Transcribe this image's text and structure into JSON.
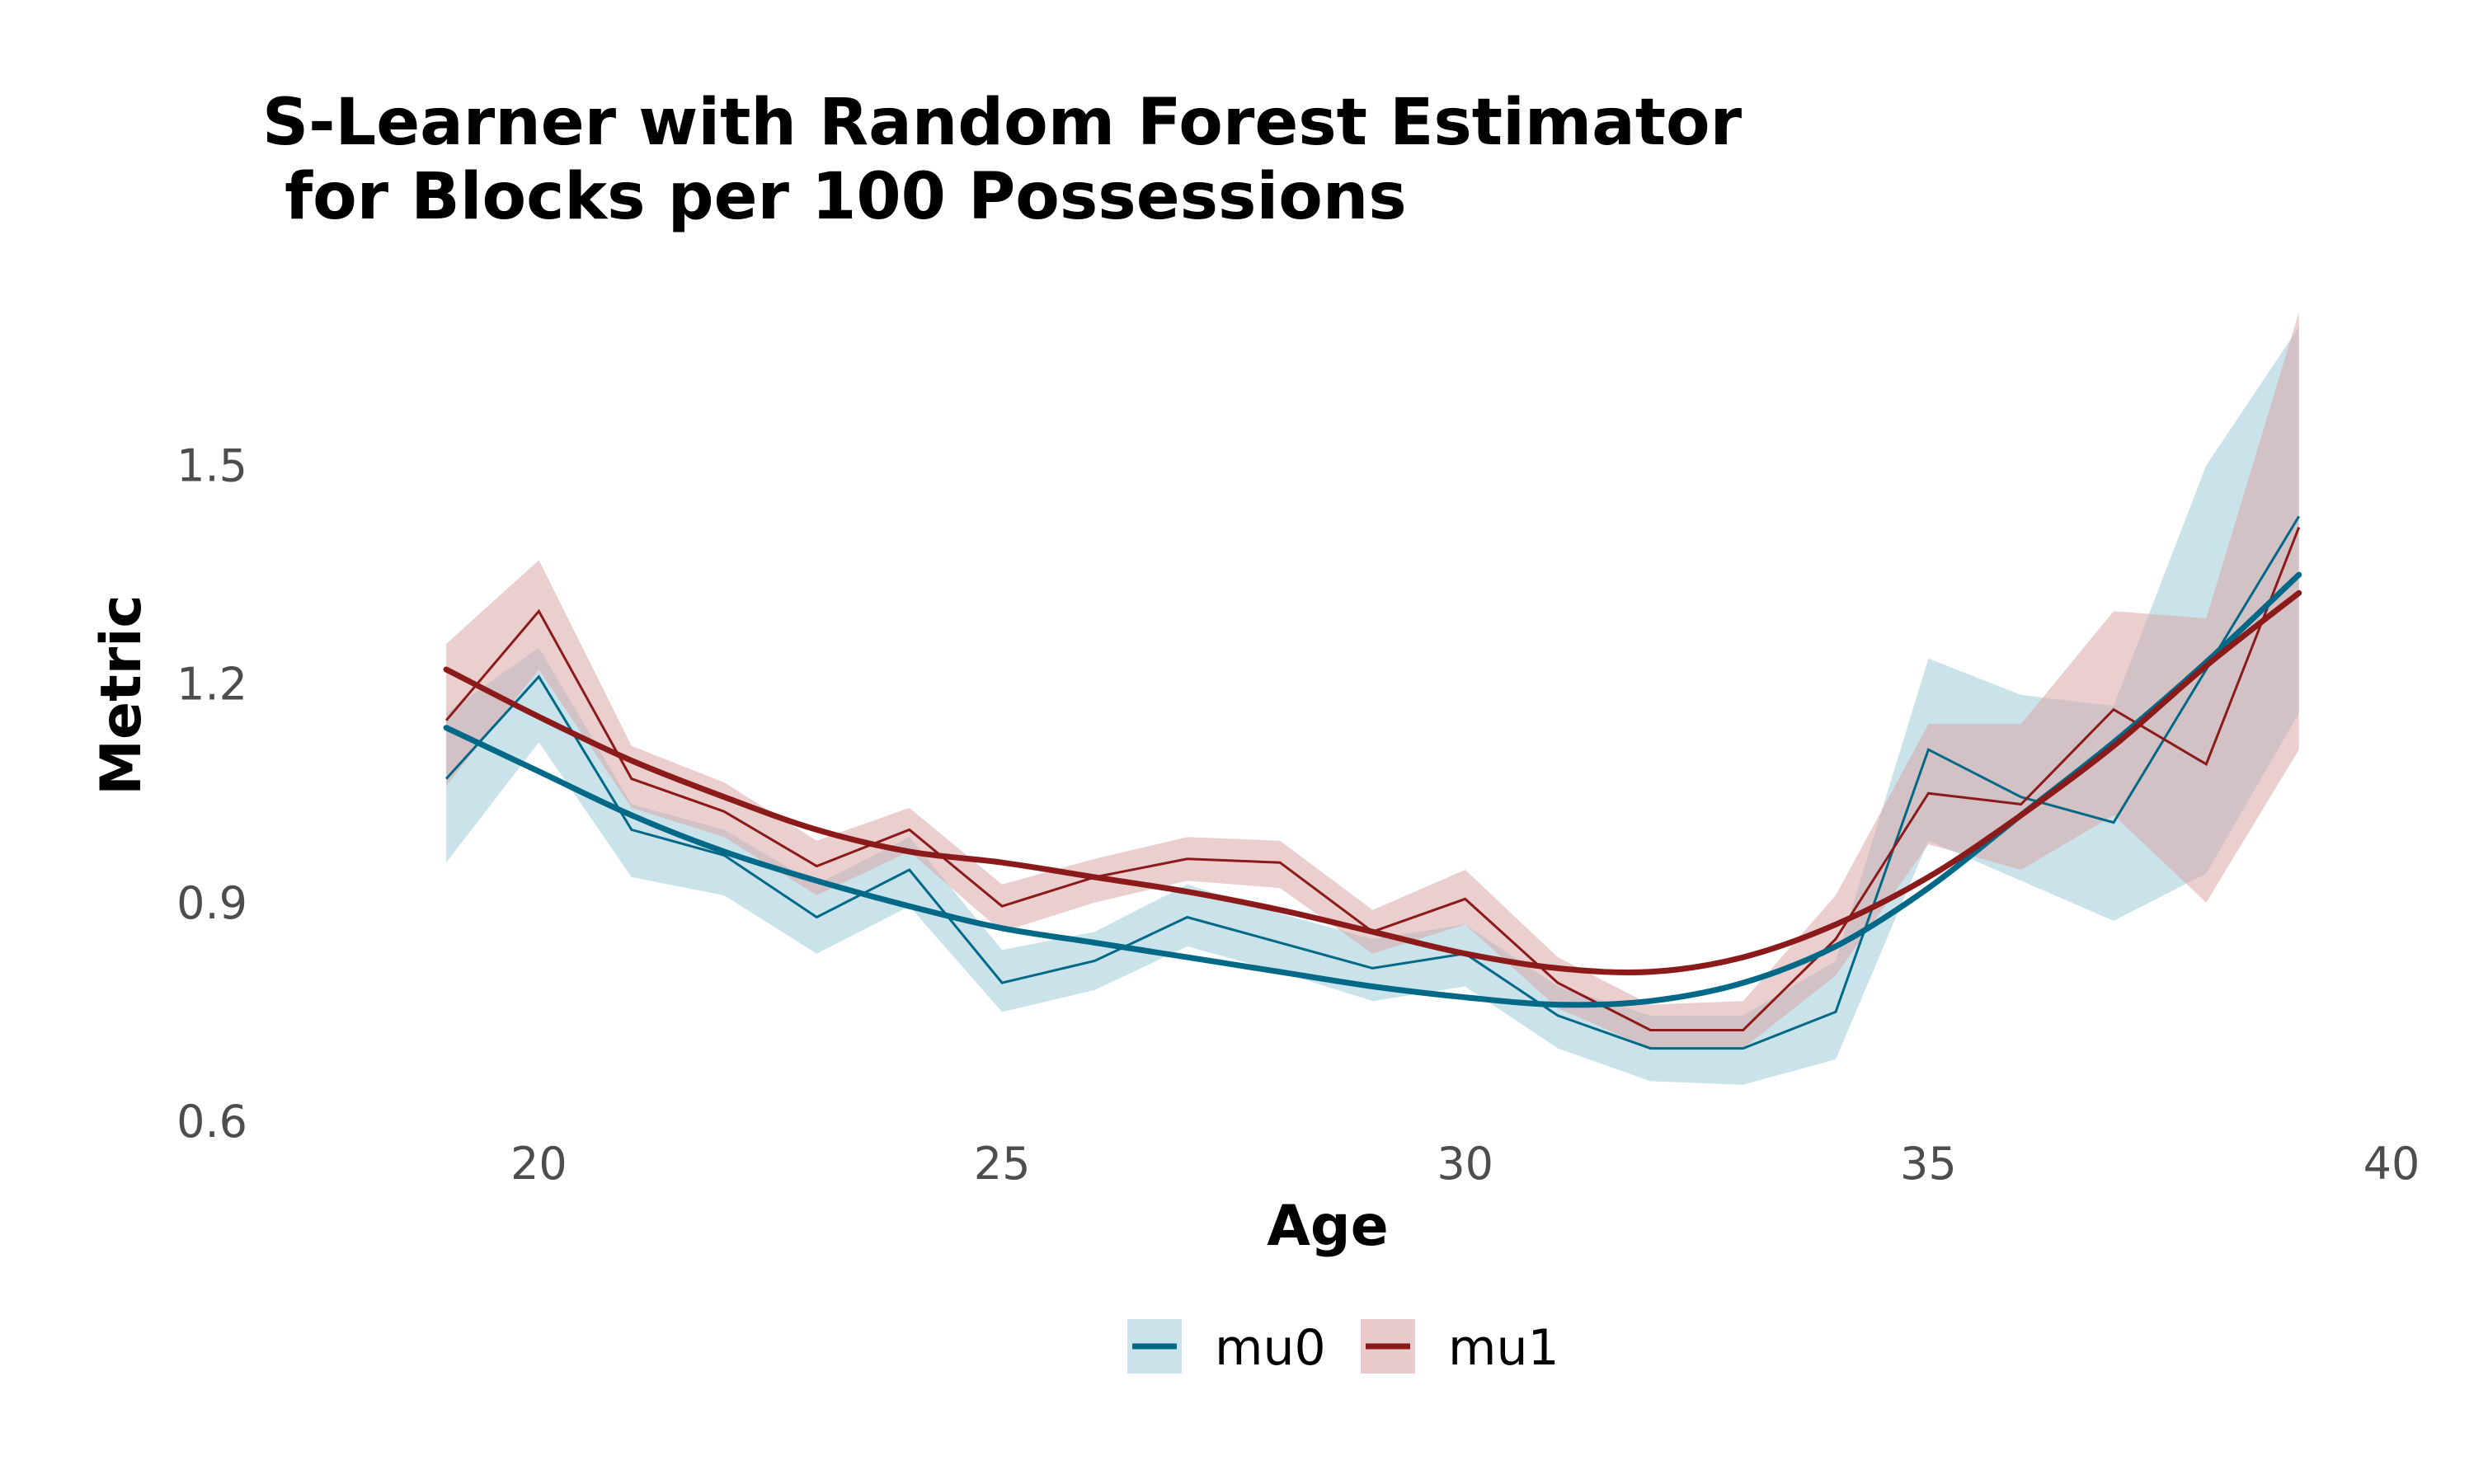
{
  "chart_data": {
    "type": "line",
    "title_line1": "S-Learner with Random Forest Estimator",
    "title_line2": " for Blocks per 100 Possessions",
    "xlabel": "Age",
    "ylabel": "Metric",
    "xlim": [
      18.1,
      40
    ],
    "ylim": [
      0.6,
      1.72
    ],
    "x_ticks": [
      {
        "value": 20,
        "label": "20"
      },
      {
        "value": 25,
        "label": "25"
      },
      {
        "value": 30,
        "label": "30"
      },
      {
        "value": 35,
        "label": "35"
      },
      {
        "value": 40,
        "label": "40"
      }
    ],
    "y_ticks": [
      {
        "value": 0.6,
        "label": "0.6"
      },
      {
        "value": 0.9,
        "label": "0.9"
      },
      {
        "value": 1.2,
        "label": "1.2"
      },
      {
        "value": 1.5,
        "label": "1.5"
      }
    ],
    "grid": false,
    "legend_position": "bottom-center",
    "x": [
      19,
      20,
      21,
      22,
      23,
      24,
      25,
      26,
      27,
      28,
      29,
      30,
      31,
      32,
      33,
      34,
      35,
      36,
      37,
      38,
      39
    ],
    "series": [
      {
        "name": "mu0",
        "color": "#006987",
        "band_color": "#a6cfdb",
        "values": [
          1.07,
          1.21,
          1.0,
          0.965,
          0.88,
          0.945,
          0.79,
          0.82,
          0.88,
          0.845,
          0.81,
          0.83,
          0.745,
          0.7,
          0.7,
          0.75,
          1.11,
          1.045,
          1.01,
          1.22,
          1.43
        ],
        "lower": [
          0.955,
          1.12,
          0.935,
          0.91,
          0.83,
          0.895,
          0.75,
          0.78,
          0.84,
          0.805,
          0.765,
          0.785,
          0.7,
          0.655,
          0.65,
          0.685,
          0.985,
          0.93,
          0.875,
          0.94,
          1.16
        ],
        "upper": [
          1.16,
          1.25,
          1.035,
          1.0,
          0.925,
          0.99,
          0.835,
          0.86,
          0.925,
          0.885,
          0.85,
          0.87,
          0.785,
          0.745,
          0.745,
          0.82,
          1.235,
          1.185,
          1.17,
          1.5,
          1.69
        ],
        "trend": [
          1.14,
          1.08,
          1.02,
          0.97,
          0.93,
          0.895,
          0.865,
          0.845,
          0.825,
          0.805,
          0.785,
          0.77,
          0.76,
          0.765,
          0.79,
          0.84,
          0.92,
          1.02,
          1.12,
          1.23,
          1.35
        ]
      },
      {
        "name": "mu1",
        "color": "#8b1a1a",
        "band_color": "#dba8a8",
        "values": [
          1.15,
          1.3,
          1.07,
          1.025,
          0.95,
          1.0,
          0.895,
          0.935,
          0.96,
          0.955,
          0.86,
          0.905,
          0.79,
          0.725,
          0.725,
          0.85,
          1.05,
          1.035,
          1.165,
          1.09,
          1.415
        ],
        "lower": [
          1.06,
          1.22,
          1.03,
          0.99,
          0.91,
          0.97,
          0.86,
          0.9,
          0.93,
          0.92,
          0.83,
          0.87,
          0.755,
          0.7,
          0.7,
          0.8,
          0.98,
          0.945,
          1.02,
          0.9,
          1.11
        ],
        "upper": [
          1.255,
          1.37,
          1.115,
          1.065,
          0.985,
          1.03,
          0.925,
          0.96,
          0.99,
          0.985,
          0.89,
          0.945,
          0.825,
          0.76,
          0.765,
          0.91,
          1.145,
          1.145,
          1.3,
          1.29,
          1.71
        ],
        "trend": [
          1.22,
          1.155,
          1.095,
          1.045,
          1.0,
          0.97,
          0.955,
          0.935,
          0.915,
          0.89,
          0.86,
          0.83,
          0.81,
          0.805,
          0.825,
          0.87,
          0.935,
          1.02,
          1.115,
          1.225,
          1.325
        ]
      }
    ]
  }
}
